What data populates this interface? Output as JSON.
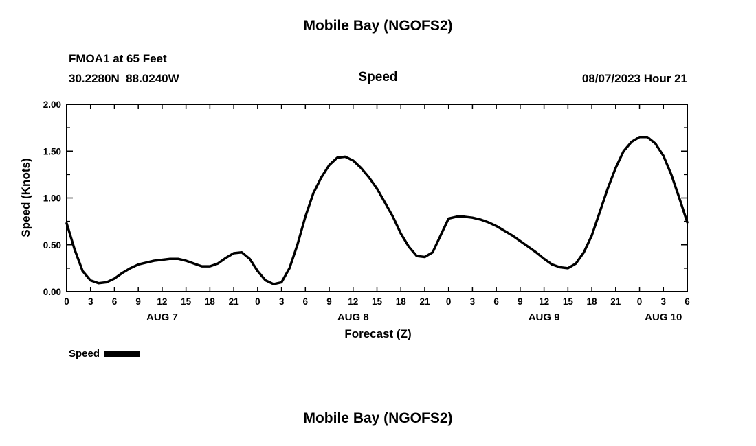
{
  "header": {
    "title": "Mobile Bay (NGOFS2)",
    "station_line1": "FMOA1 at 65 Feet",
    "station_line2": "30.2280N  88.0240W",
    "subtitle": "Speed",
    "datetime": "08/07/2023 Hour 21"
  },
  "legend": {
    "label": "Speed"
  },
  "footer": {
    "title": "Mobile Bay (NGOFS2)"
  },
  "chart_data": {
    "type": "line",
    "title": "Speed",
    "xlabel": "Forecast (Z)",
    "ylabel": "Speed (Knots)",
    "xlim": [
      0,
      78
    ],
    "ylim": [
      0,
      2
    ],
    "grid": false,
    "legend_position": "bottom-left",
    "y_major_ticks": [
      0,
      0.5,
      1.0,
      1.5,
      2.0
    ],
    "y_tick_labels": [
      "0.00",
      "0.50",
      "1.00",
      "1.50",
      "2.00"
    ],
    "y_minor_step": 0.25,
    "x_tick_step": 3,
    "x_tick_labels": [
      "0",
      "3",
      "6",
      "9",
      "12",
      "15",
      "18",
      "21",
      "0",
      "3",
      "6",
      "9",
      "12",
      "15",
      "18",
      "21",
      "0",
      "3",
      "6",
      "9",
      "12",
      "15",
      "18",
      "21",
      "0",
      "3",
      "6"
    ],
    "day_labels": [
      {
        "label": "AUG 7",
        "hour": 12
      },
      {
        "label": "AUG 8",
        "hour": 36
      },
      {
        "label": "AUG 9",
        "hour": 60
      },
      {
        "label": "AUG 10",
        "hour": 75
      }
    ],
    "series": [
      {
        "name": "Speed",
        "color": "#000000",
        "x": [
          0,
          1,
          2,
          3,
          4,
          5,
          6,
          7,
          8,
          9,
          10,
          11,
          12,
          13,
          14,
          15,
          16,
          17,
          18,
          19,
          20,
          21,
          22,
          23,
          24,
          25,
          26,
          27,
          28,
          29,
          30,
          31,
          32,
          33,
          34,
          35,
          36,
          37,
          38,
          39,
          40,
          41,
          42,
          43,
          44,
          45,
          46,
          47,
          48,
          49,
          50,
          51,
          52,
          53,
          54,
          55,
          56,
          57,
          58,
          59,
          60,
          61,
          62,
          63,
          64,
          65,
          66,
          67,
          68,
          69,
          70,
          71,
          72,
          73,
          74,
          75,
          76,
          77,
          78
        ],
        "y": [
          0.73,
          0.45,
          0.22,
          0.12,
          0.09,
          0.1,
          0.14,
          0.2,
          0.25,
          0.29,
          0.31,
          0.33,
          0.34,
          0.35,
          0.35,
          0.33,
          0.3,
          0.27,
          0.27,
          0.3,
          0.36,
          0.41,
          0.42,
          0.35,
          0.22,
          0.12,
          0.08,
          0.1,
          0.25,
          0.5,
          0.8,
          1.05,
          1.22,
          1.35,
          1.43,
          1.44,
          1.4,
          1.32,
          1.22,
          1.1,
          0.95,
          0.8,
          0.62,
          0.48,
          0.38,
          0.37,
          0.42,
          0.6,
          0.78,
          0.8,
          0.8,
          0.79,
          0.77,
          0.74,
          0.7,
          0.65,
          0.6,
          0.54,
          0.48,
          0.42,
          0.35,
          0.29,
          0.26,
          0.25,
          0.3,
          0.42,
          0.6,
          0.85,
          1.1,
          1.32,
          1.5,
          1.6,
          1.65,
          1.65,
          1.58,
          1.45,
          1.25,
          1.0,
          0.74
        ]
      }
    ]
  }
}
